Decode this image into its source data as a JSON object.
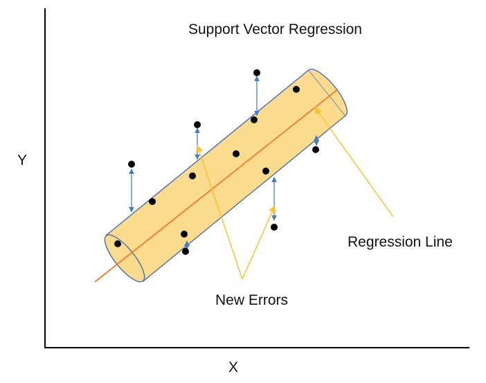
{
  "title": "Support Vector Regression",
  "axes": {
    "x_label": "X",
    "y_label": "Y"
  },
  "annotations": {
    "regression_line": "Regression Line",
    "new_errors": "New Errors"
  },
  "colors": {
    "tube_fill": "#fbdc8e",
    "tube_stroke": "#4a6aa8",
    "regression_line": "#f07a2e",
    "error_arrow": "#4a7bc8",
    "callout": "#f9c232",
    "points": "#000000",
    "axis": "#000000"
  },
  "points_inside_tube": 8,
  "points_outside_tube": 6
}
